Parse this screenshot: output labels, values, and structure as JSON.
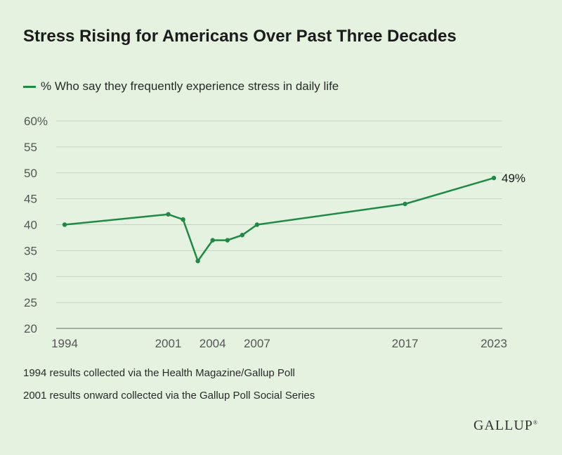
{
  "header": {
    "title": "Stress Rising for Americans Over Past Three Decades"
  },
  "legend": {
    "label": "% Who say they frequently experience stress in daily life",
    "color": "#1f8a45"
  },
  "notes": {
    "note1": "1994 results collected via the Health Magazine/Gallup Poll",
    "note2": "2001 results onward collected via the Gallup Poll Social Series"
  },
  "brand": {
    "name": "GALLUP",
    "mark": "®"
  },
  "chart_data": {
    "type": "line",
    "title": "Stress Rising for Americans Over Past Three Decades",
    "xlabel": "",
    "ylabel": "",
    "ylim": [
      20,
      60
    ],
    "xlim": [
      1994,
      2023
    ],
    "y_ticks": [
      20,
      25,
      30,
      35,
      40,
      45,
      50,
      55,
      60
    ],
    "y_tick_labels": [
      "20",
      "25",
      "30",
      "35",
      "40",
      "45",
      "50",
      "55",
      "60%"
    ],
    "x_ticks": [
      1994,
      2001,
      2004,
      2007,
      2017,
      2023
    ],
    "x_tick_labels": [
      "1994",
      "2001",
      "2004",
      "2007",
      "2017",
      "2023"
    ],
    "grid": true,
    "legend_position": "top-left",
    "series": [
      {
        "name": "% Who say they frequently experience stress in daily life",
        "color": "#1f8a45",
        "x": [
          1994,
          2001,
          2002,
          2003,
          2004,
          2005,
          2006,
          2007,
          2017,
          2023
        ],
        "values": [
          40,
          42,
          41,
          33,
          37,
          37,
          38,
          40,
          44,
          49
        ]
      }
    ],
    "annotations": [
      {
        "x": 2023,
        "y": 49,
        "text": "49%"
      }
    ]
  }
}
